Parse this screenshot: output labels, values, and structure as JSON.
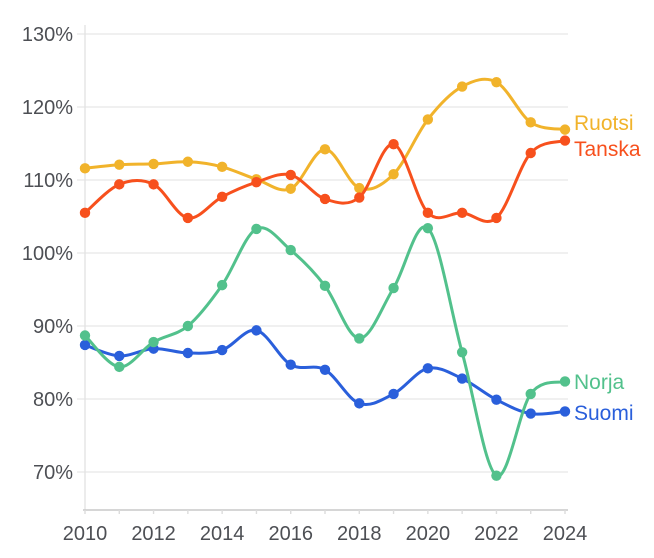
{
  "chart_data": {
    "type": "line",
    "title": "",
    "xlabel": "",
    "ylabel": "",
    "x": [
      2010,
      2011,
      2012,
      2013,
      2014,
      2015,
      2016,
      2017,
      2018,
      2019,
      2020,
      2021,
      2022,
      2023,
      2024
    ],
    "x_tick_labels": [
      "2010",
      "2012",
      "2014",
      "2016",
      "2018",
      "2020",
      "2022",
      "2024"
    ],
    "x_ticks_shown_every_year": true,
    "y_ticks": [
      130,
      120,
      110,
      100,
      90,
      80,
      70
    ],
    "y_tick_labels": [
      "130%",
      "120%",
      "110%",
      "100%",
      "90%",
      "80%",
      "70%"
    ],
    "ylim": [
      64.8,
      131.2
    ],
    "xlim": [
      2010,
      2024
    ],
    "grid": "horizontal",
    "legend_position": "direct-labels-right",
    "legend_order_top_to_bottom": [
      "Ruotsi",
      "Tanska",
      "Norja",
      "Suomi"
    ],
    "series": [
      {
        "name": "Ruotsi",
        "color": "#F1B32B",
        "values": [
          111.6,
          112.1,
          112.2,
          112.5,
          111.8,
          110.1,
          108.8,
          114.2,
          108.9,
          110.8,
          118.3,
          122.8,
          123.4,
          117.9,
          116.9
        ]
      },
      {
        "name": "Tanska",
        "color": "#F7501D",
        "values": [
          105.5,
          109.4,
          109.4,
          104.8,
          107.7,
          109.7,
          110.7,
          107.4,
          107.6,
          114.9,
          105.5,
          105.5,
          104.8,
          113.7,
          115.4
        ]
      },
      {
        "name": "Suomi",
        "color": "#2A5FDB",
        "values": [
          87.4,
          85.9,
          86.9,
          86.3,
          86.7,
          89.4,
          84.7,
          84.0,
          79.4,
          80.7,
          84.2,
          82.8,
          79.9,
          78.0,
          78.3
        ]
      },
      {
        "name": "Norja",
        "color": "#52C18C",
        "values": [
          88.7,
          84.4,
          87.8,
          90.0,
          95.6,
          103.3,
          100.4,
          95.5,
          88.3,
          95.2,
          103.4,
          86.4,
          69.5,
          80.7,
          82.4
        ]
      }
    ],
    "style_colors": {
      "gridline": "#ececec",
      "axis_line": "#c9c9c9",
      "tick_mark": "#dcdcdc",
      "tick_text": "#4d4f54",
      "background": "#ffffff"
    }
  }
}
